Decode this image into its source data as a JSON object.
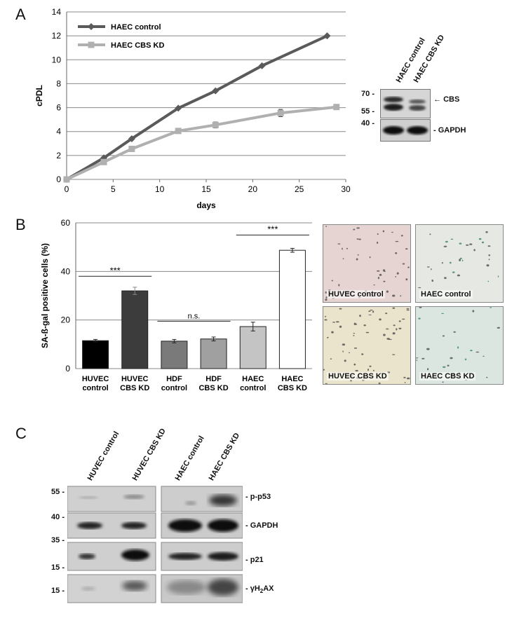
{
  "panels": {
    "a": "A",
    "b": "B",
    "c": "C"
  },
  "chart_data": [
    {
      "type": "line",
      "xlabel": "days",
      "ylabel": "cPDL",
      "xlim": [
        0,
        30
      ],
      "ylim": [
        0,
        14
      ],
      "xticks": [
        "0",
        "5",
        "10",
        "15",
        "20",
        "25",
        "30"
      ],
      "yticks": [
        "0",
        "2",
        "4",
        "6",
        "8",
        "10",
        "12",
        "14"
      ],
      "grid": "horizontal",
      "legend_position": "top-left",
      "series": [
        {
          "name": "HAEC control",
          "color": "#5a5a5a",
          "marker": "diamond",
          "x": [
            0,
            4,
            7,
            12,
            16,
            21,
            28
          ],
          "y": [
            0,
            1.8,
            3.4,
            5.95,
            7.4,
            9.5,
            12.0
          ],
          "err": [
            0,
            0,
            0,
            0,
            0,
            0,
            0
          ]
        },
        {
          "name": "HAEC CBS KD",
          "color": "#b0b0b0",
          "marker": "square",
          "x": [
            0,
            4,
            7,
            12,
            16,
            23,
            29
          ],
          "y": [
            0,
            1.45,
            2.55,
            4.05,
            4.55,
            5.55,
            6.05
          ],
          "err": [
            0,
            0,
            0,
            0,
            0.25,
            0.3,
            0.2
          ]
        }
      ]
    },
    {
      "type": "bar",
      "ylabel": "SA-ß-gal positive cells (%)",
      "ylim": [
        0,
        60
      ],
      "yticks": [
        "0",
        "20",
        "40",
        "60"
      ],
      "grid": "horizontal",
      "categories": [
        [
          "HUVEC",
          "control"
        ],
        [
          "HUVEC",
          "CBS KD"
        ],
        [
          "HDF",
          "control"
        ],
        [
          "HDF",
          "CBS KD"
        ],
        [
          "HAEC",
          "control"
        ],
        [
          "HAEC",
          "CBS KD"
        ]
      ],
      "values": [
        11.5,
        32.0,
        11.3,
        12.2,
        17.3,
        48.7
      ],
      "errors": [
        0.5,
        1.5,
        0.7,
        0.8,
        1.8,
        0.8
      ],
      "colors": [
        "#000000",
        "#3c3c3c",
        "#7a7a7a",
        "#a0a0a0",
        "#c4c4c4",
        "#ffffff"
      ],
      "annotations": [
        {
          "text": "***",
          "from": 0,
          "to": 1,
          "y": 38
        },
        {
          "text": "n.s.",
          "from": 2,
          "to": 3,
          "y": 19.5
        },
        {
          "text": "***",
          "from": 4,
          "to": 5,
          "y": 55
        }
      ]
    }
  ],
  "blotA": {
    "lanes": [
      "HAEC control",
      "HAEC CBS KD"
    ],
    "mw": [
      "70 -",
      "55 -",
      "40 -"
    ],
    "bands": [
      "CBS",
      "- GAPDH"
    ],
    "arrow": "←"
  },
  "micrographs": [
    {
      "label": "HUVEC control",
      "tint": "#e6d4d2"
    },
    {
      "label": "HAEC control",
      "tint": "#e5e8e3"
    },
    {
      "label": "HUVEC CBS KD",
      "tint": "#ebe4cc"
    },
    {
      "label": "HAEC CBS KD",
      "tint": "#dce6e0"
    }
  ],
  "blotC": {
    "lanes": [
      "HUVEC control",
      "HUVEC CBS KD",
      "HAEC control",
      "HAEC CBS KD"
    ],
    "mw": [
      "55 -",
      "40 -",
      "35 -",
      "15 -",
      "15 -"
    ],
    "bands": [
      "- p-p53",
      "- GAPDH",
      "- p21"
    ],
    "gh2ax": {
      "prefix": "- γH",
      "sub": "2",
      "suffix": "AX"
    }
  }
}
